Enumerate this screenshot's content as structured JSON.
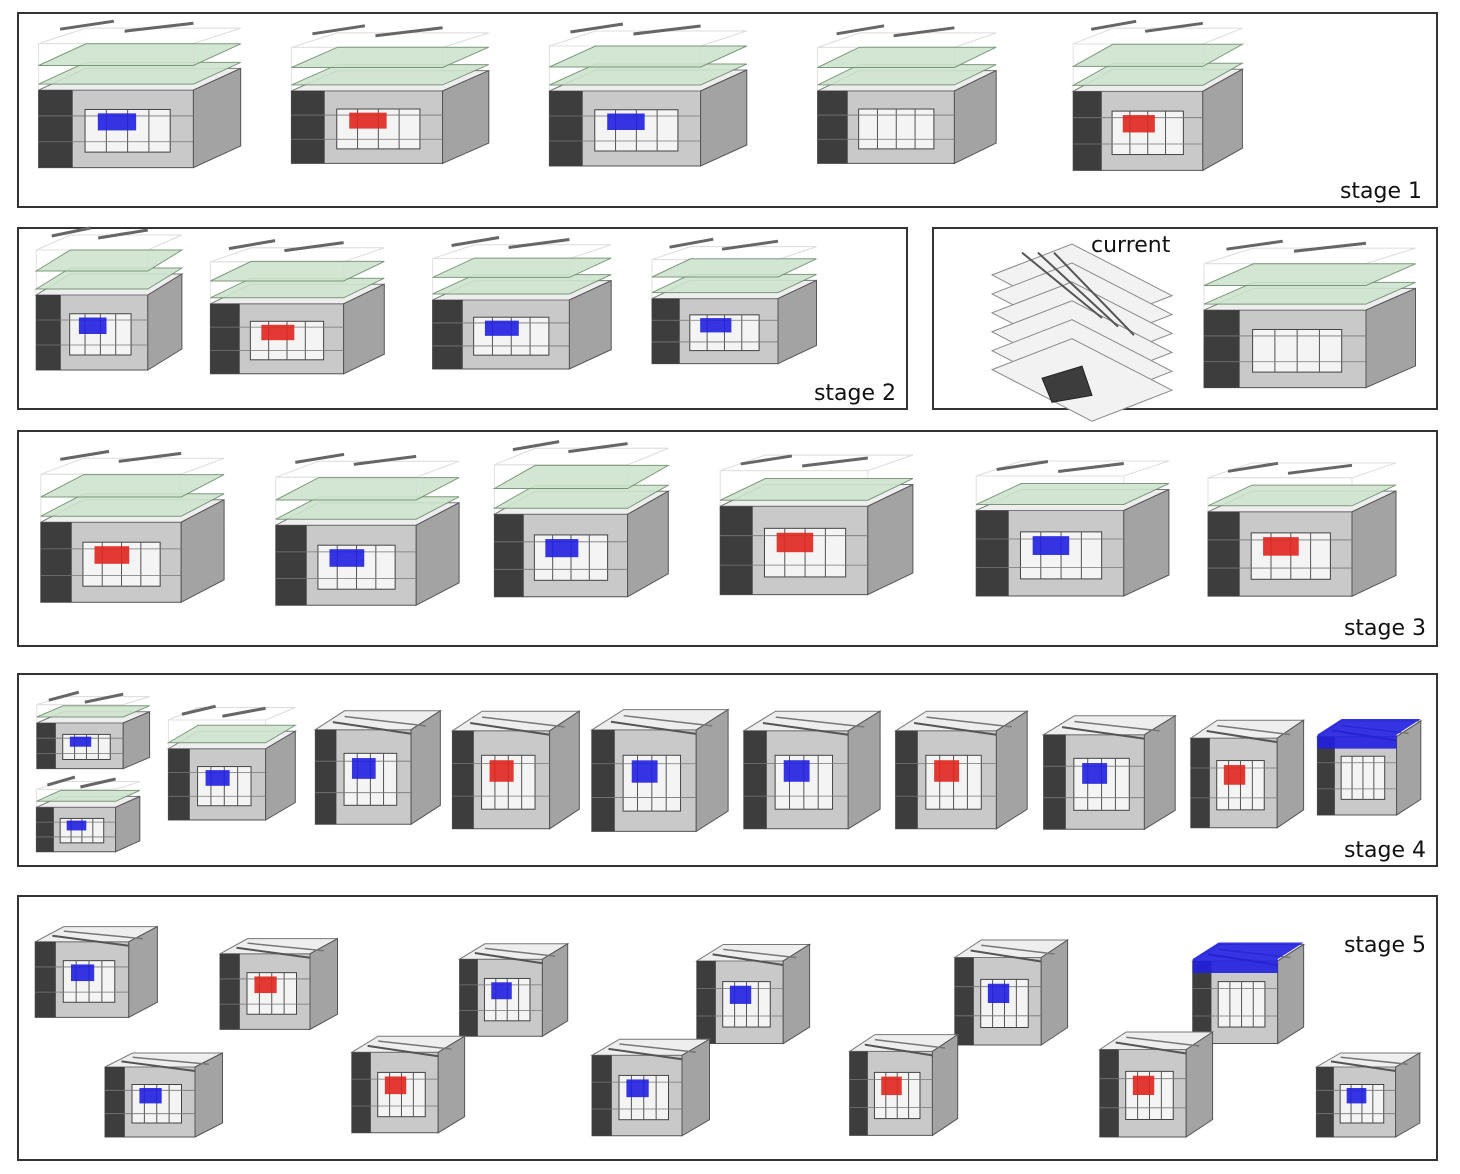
{
  "labels": {
    "stage1": "stage 1",
    "stage2": "stage 2",
    "current": "current",
    "stage3": "stage 3",
    "stage4": "stage 4",
    "stage5": "stage 5"
  },
  "colors": {
    "frame": "#333333",
    "highlight_blue": "#1f1fe0",
    "highlight_red": "#e0261e",
    "slab_green": "#cfe3cf",
    "wall_dark": "#3d3d3d",
    "wall_grey": "#9a9a9a",
    "wall_light": "#d9d9d9"
  }
}
